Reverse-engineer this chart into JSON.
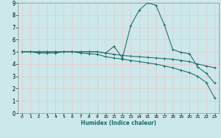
{
  "title": "",
  "xlabel": "Humidex (Indice chaleur)",
  "bg_color": "#cce8ea",
  "grid_color": "#e8c8c8",
  "line_color": "#1a6b6b",
  "xlim": [
    -0.5,
    23.5
  ],
  "ylim": [
    0,
    9
  ],
  "xticks": [
    0,
    1,
    2,
    3,
    4,
    5,
    6,
    7,
    8,
    9,
    10,
    11,
    12,
    13,
    14,
    15,
    16,
    17,
    18,
    19,
    20,
    21,
    22,
    23
  ],
  "yticks": [
    0,
    1,
    2,
    3,
    4,
    5,
    6,
    7,
    8,
    9
  ],
  "series": [
    {
      "x": [
        0,
        1,
        2,
        3,
        4,
        5,
        6,
        7,
        8,
        9,
        10,
        11,
        12,
        13,
        14,
        15,
        16,
        17,
        18,
        19,
        20,
        21,
        22,
        23
      ],
      "y": [
        5.0,
        5.0,
        5.0,
        5.0,
        5.0,
        5.0,
        5.0,
        5.0,
        5.0,
        5.0,
        4.9,
        4.8,
        4.7,
        4.65,
        4.6,
        4.55,
        4.5,
        4.45,
        4.4,
        4.3,
        4.2,
        4.0,
        3.85,
        3.7
      ]
    },
    {
      "x": [
        0,
        1,
        2,
        3,
        4,
        5,
        6,
        7,
        8,
        9,
        10,
        11,
        12,
        13,
        14,
        15,
        16,
        17,
        18,
        19,
        20,
        21,
        22,
        23
      ],
      "y": [
        5.0,
        5.0,
        4.9,
        4.9,
        4.9,
        5.0,
        5.0,
        4.9,
        4.85,
        4.8,
        4.6,
        4.5,
        4.4,
        4.3,
        4.2,
        4.1,
        4.0,
        3.85,
        3.7,
        3.5,
        3.3,
        3.0,
        2.5,
        1.25
      ]
    },
    {
      "x": [
        0,
        1,
        2,
        3,
        4,
        5,
        6,
        7,
        8,
        9,
        10,
        11,
        12,
        13,
        14,
        15,
        16,
        17,
        18,
        19,
        20,
        21,
        22,
        23
      ],
      "y": [
        5.0,
        5.0,
        5.0,
        5.0,
        5.0,
        5.0,
        5.0,
        5.0,
        5.0,
        5.0,
        4.9,
        5.45,
        4.5,
        7.15,
        8.4,
        9.0,
        8.8,
        7.2,
        5.2,
        4.95,
        4.85,
        3.75,
        3.25,
        2.45
      ]
    }
  ]
}
